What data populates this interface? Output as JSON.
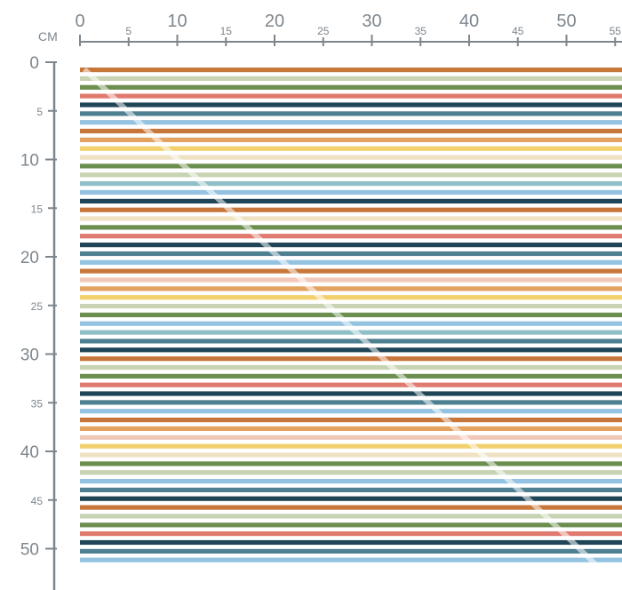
{
  "unit_label": "CM",
  "top_ruler": {
    "major_labels": [
      "0",
      "10",
      "20",
      "30",
      "40",
      "50"
    ],
    "minor_labels": [
      "5",
      "15",
      "25",
      "35",
      "45",
      "55"
    ]
  },
  "left_ruler": {
    "major_labels": [
      "0",
      "10",
      "20",
      "30",
      "40",
      "50"
    ],
    "minor_labels": [
      "5",
      "15",
      "25",
      "35",
      "45"
    ]
  },
  "colors": {
    "rust": "#c8773a",
    "sage_light": "#c7d3b2",
    "green": "#6c8e4e",
    "coral": "#e07a6e",
    "navy": "#1f4556",
    "teal": "#4e8092",
    "sky": "#93c3e0",
    "orange": "#e3a260",
    "yellow": "#f2d06e",
    "blush": "#f1c7b8",
    "aqua": "#8fc0c7",
    "pale": "#efe2c3",
    "ruler_ink": "#7d868d"
  },
  "stripe_sequence": [
    "rust",
    "sage_light",
    "green",
    "coral",
    "navy",
    "teal",
    "sky",
    "rust",
    "orange",
    "yellow",
    "pale",
    "green",
    "sage_light",
    "aqua",
    "sky",
    "navy",
    "rust",
    "pale",
    "green",
    "coral",
    "navy",
    "teal",
    "sky",
    "rust",
    "blush",
    "orange",
    "yellow",
    "sage_light",
    "green",
    "sky",
    "aqua",
    "teal",
    "navy",
    "rust",
    "sage_light",
    "green",
    "coral",
    "navy",
    "teal",
    "sky",
    "rust",
    "orange",
    "blush",
    "yellow",
    "pale",
    "green",
    "sage_light",
    "sky",
    "teal",
    "navy",
    "rust",
    "sage_light",
    "green",
    "coral",
    "navy",
    "teal",
    "sky"
  ]
}
